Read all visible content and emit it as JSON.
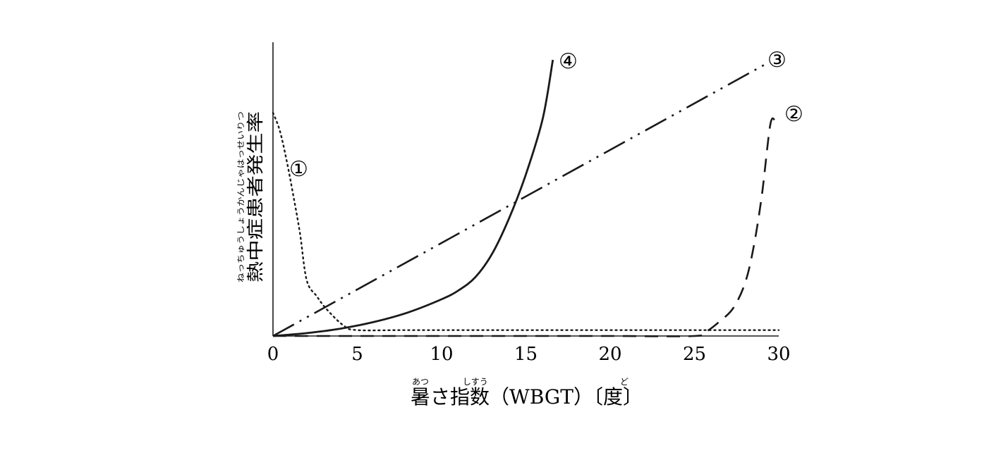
{
  "chart_data": {
    "type": "line",
    "title": "",
    "xlabel": "暑さ指数（WBGT）〔度〕",
    "xlabel_parts": {
      "kanji1": "暑",
      "kanji1_ruby": "あつ",
      "kana": "さ",
      "kanji2": "指数",
      "kanji2_ruby": "しすう",
      "middle": "（WBGT）〔",
      "kanji3": "度",
      "kanji3_ruby": "ど",
      "end": "〕"
    },
    "ylabel": "熱中症患者発生率",
    "ylabel_ruby": "ねっちゅうしょうかんじゃはっせいりつ",
    "xlim": [
      0,
      30
    ],
    "ylim": [
      0,
      100
    ],
    "x_ticks": [
      "0",
      "5",
      "10",
      "15",
      "20",
      "25",
      "30"
    ],
    "grid": false,
    "series": [
      {
        "name": "①",
        "style": "dotted",
        "points": [
          [
            0,
            76
          ],
          [
            0.4,
            70
          ],
          [
            0.8,
            60
          ],
          [
            1.2,
            48
          ],
          [
            1.6,
            35
          ],
          [
            2,
            19
          ],
          [
            2.6,
            13.5
          ],
          [
            3.2,
            9
          ],
          [
            4.2,
            3.5
          ],
          [
            5,
            2
          ],
          [
            8,
            2
          ],
          [
            15,
            2
          ],
          [
            20,
            2
          ],
          [
            25,
            2
          ],
          [
            30,
            2
          ]
        ]
      },
      {
        "name": "②",
        "style": "dashed",
        "points": [
          [
            0,
            0
          ],
          [
            5,
            0
          ],
          [
            10,
            0
          ],
          [
            15,
            0
          ],
          [
            20,
            0
          ],
          [
            25,
            0
          ],
          [
            25.7,
            1.5
          ],
          [
            26.5,
            5
          ],
          [
            27.3,
            9.5
          ],
          [
            28,
            18
          ],
          [
            28.5,
            30
          ],
          [
            29,
            48
          ],
          [
            29.5,
            72
          ],
          [
            29.8,
            73
          ]
        ]
      },
      {
        "name": "③",
        "style": "dash-dot-dot",
        "points": [
          [
            0,
            0
          ],
          [
            29.2,
            92.5
          ]
        ]
      },
      {
        "name": "④",
        "style": "solid",
        "points": [
          [
            0,
            0
          ],
          [
            2,
            1
          ],
          [
            4,
            2.5
          ],
          [
            6,
            4.8
          ],
          [
            8,
            8
          ],
          [
            10,
            12.5
          ],
          [
            11,
            15.5
          ],
          [
            12,
            20
          ],
          [
            13,
            28
          ],
          [
            14,
            40
          ],
          [
            15,
            55
          ],
          [
            16,
            74
          ],
          [
            16.6,
            94
          ]
        ]
      }
    ]
  }
}
